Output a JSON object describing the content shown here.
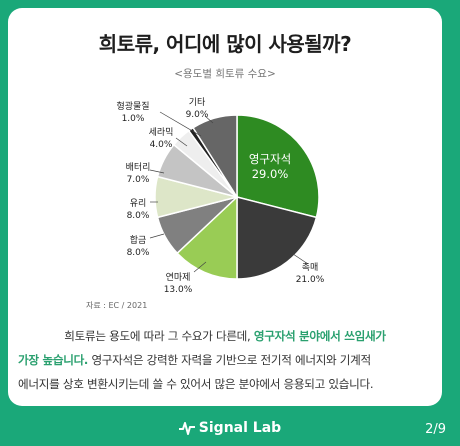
{
  "header": {
    "title": "희토류, 어디에 많이 사용될까?",
    "subtitle": "<용도별 희토류 수요>"
  },
  "chart_data": {
    "type": "pie",
    "title": "희토류, 어디에 많이 사용될까?",
    "subtitle": "<용도별 희토류 수요>",
    "unit": "%",
    "slices": [
      {
        "label": "영구자석",
        "value": 29.0,
        "value_label": "29.0%",
        "color": "#2e8b22"
      },
      {
        "label": "촉매",
        "value": 21.0,
        "value_label": "21.0%",
        "color": "#3a3a3a"
      },
      {
        "label": "연마제",
        "value": 13.0,
        "value_label": "13.0%",
        "color": "#99cc55"
      },
      {
        "label": "합금",
        "value": 8.0,
        "value_label": "8.0%",
        "color": "#808080"
      },
      {
        "label": "유리",
        "value": 8.0,
        "value_label": "8.0%",
        "color": "#dde6c8"
      },
      {
        "label": "배터리",
        "value": 7.0,
        "value_label": "7.0%",
        "color": "#c4c4c4"
      },
      {
        "label": "세라믹",
        "value": 4.0,
        "value_label": "4.0%",
        "color": "#eeeeee"
      },
      {
        "label": "형광물질",
        "value": 1.0,
        "value_label": "1.0%",
        "color": "#222222"
      },
      {
        "label": "기타",
        "value": 9.0,
        "value_label": "9.0%",
        "color": "#666666"
      }
    ],
    "source": "자료 : EC / 2021"
  },
  "description": {
    "line1_plain": "희토류는 용도에 따라 그 수요가 다른데,",
    "line1_highlight": "영구자석 분야에서 쓰임새가",
    "line2_highlight": "가장 높습니다.",
    "line2_plain": "영구자석은 강력한 자력을 기반으로 전기적 에너지와 기계적",
    "line3_plain": "에너지를 상호 변환시키는데 쓸 수 있어서 많은 분야에서 응용되고 있습니다."
  },
  "footer": {
    "brand": "Signal Lab",
    "page": "2/9"
  },
  "colors": {
    "background": "#1aa879",
    "highlight": "#2aa06f"
  }
}
